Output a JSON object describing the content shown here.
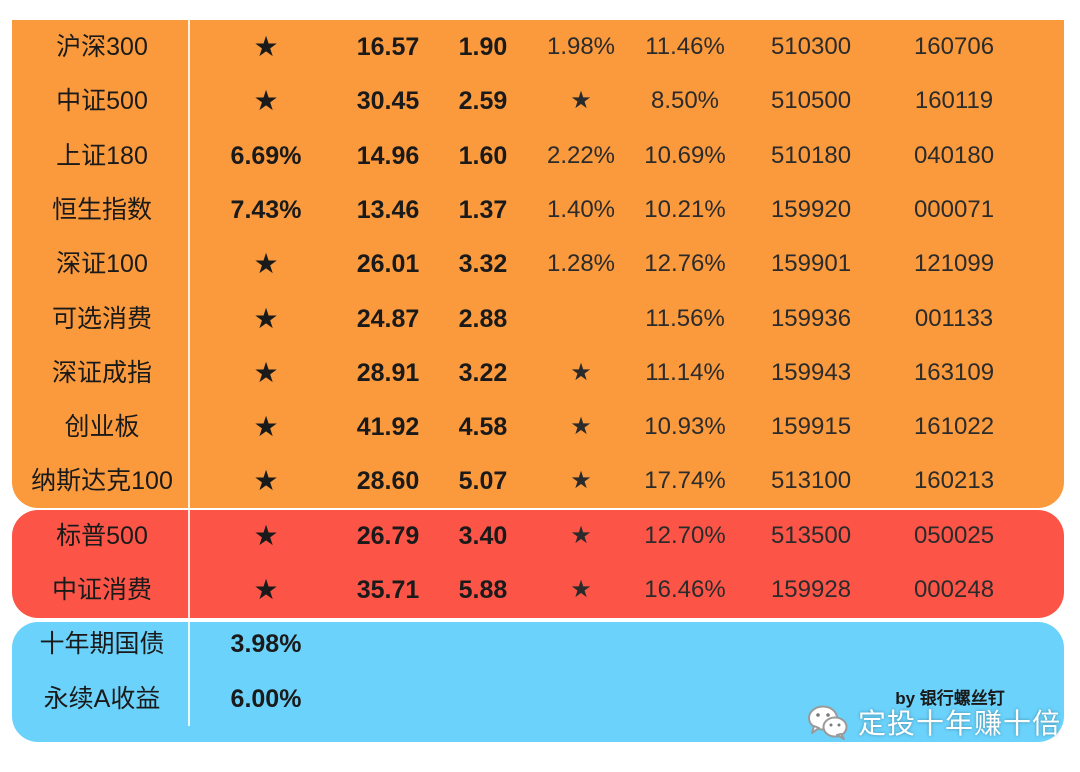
{
  "colors": {
    "group_main": "#fb9a3d",
    "group_alert": "#fc5548",
    "group_bond": "#6ad2fb"
  },
  "rows": [
    {
      "name": "沪深300",
      "yield": "★",
      "pe": "16.57",
      "pb": "1.90",
      "div": "1.98%",
      "roe": "11.46%",
      "etf": "510300",
      "fund": "160706"
    },
    {
      "name": "中证500",
      "yield": "★",
      "pe": "30.45",
      "pb": "2.59",
      "div": "★",
      "roe": "8.50%",
      "etf": "510500",
      "fund": "160119"
    },
    {
      "name": "上证180",
      "yield": "6.69%",
      "pe": "14.96",
      "pb": "1.60",
      "div": "2.22%",
      "roe": "10.69%",
      "etf": "510180",
      "fund": "040180"
    },
    {
      "name": "恒生指数",
      "yield": "7.43%",
      "pe": "13.46",
      "pb": "1.37",
      "div": "1.40%",
      "roe": "10.21%",
      "etf": "159920",
      "fund": "000071"
    },
    {
      "name": "深证100",
      "yield": "★",
      "pe": "26.01",
      "pb": "3.32",
      "div": "1.28%",
      "roe": "12.76%",
      "etf": "159901",
      "fund": "121099"
    },
    {
      "name": "可选消费",
      "yield": "★",
      "pe": "24.87",
      "pb": "2.88",
      "div": "",
      "roe": "11.56%",
      "etf": "159936",
      "fund": "001133"
    },
    {
      "name": "深证成指",
      "yield": "★",
      "pe": "28.91",
      "pb": "3.22",
      "div": "★",
      "roe": "11.14%",
      "etf": "159943",
      "fund": "163109"
    },
    {
      "name": "创业板",
      "yield": "★",
      "pe": "41.92",
      "pb": "4.58",
      "div": "★",
      "roe": "10.93%",
      "etf": "159915",
      "fund": "161022"
    },
    {
      "name": "纳斯达克100",
      "yield": "★",
      "pe": "28.60",
      "pb": "5.07",
      "div": "★",
      "roe": "17.74%",
      "etf": "513100",
      "fund": "160213"
    },
    {
      "name": "标普500",
      "yield": "★",
      "pe": "26.79",
      "pb": "3.40",
      "div": "★",
      "roe": "12.70%",
      "etf": "513500",
      "fund": "050025"
    },
    {
      "name": "中证消费",
      "yield": "★",
      "pe": "35.71",
      "pb": "5.88",
      "div": "★",
      "roe": "16.46%",
      "etf": "159928",
      "fund": "000248"
    },
    {
      "name": "十年期国债",
      "yield": "3.98%",
      "pe": "",
      "pb": "",
      "div": "",
      "roe": "",
      "etf": "",
      "fund": ""
    },
    {
      "name": "永续A收益",
      "yield": "6.00%",
      "pe": "",
      "pb": "",
      "div": "",
      "roe": "",
      "etf": "",
      "fund": ""
    }
  ],
  "byline": "by 银行螺丝钉",
  "watermark": {
    "icon": "wechat-icon",
    "text": "定投十年赚十倍"
  }
}
